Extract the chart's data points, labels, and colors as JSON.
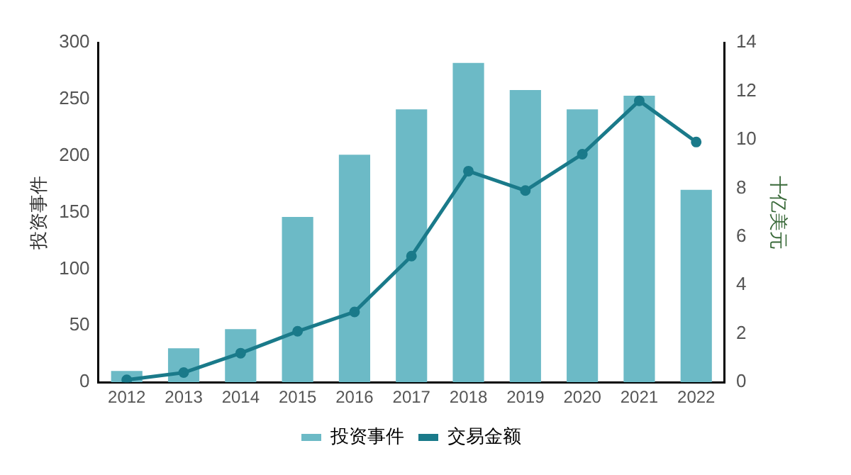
{
  "chart_data": {
    "type": "bar",
    "categories": [
      "2012",
      "2013",
      "2014",
      "2015",
      "2016",
      "2017",
      "2018",
      "2019",
      "2020",
      "2021",
      "2022"
    ],
    "series": [
      {
        "name": "投资事件",
        "color": "#6cbac6",
        "values": [
          10,
          30,
          47,
          146,
          201,
          241,
          282,
          258,
          241,
          253,
          170
        ]
      },
      {
        "name": "交易金额",
        "type": "line",
        "axis": "y2",
        "color": "#1a7a8a",
        "marker": "circle",
        "values": [
          0.1,
          0.4,
          1.2,
          2.1,
          2.9,
          5.2,
          8.7,
          7.9,
          9.4,
          11.6,
          9.9
        ]
      }
    ],
    "ylabel": "投资事件",
    "y2label": "十亿美元",
    "ylim": [
      0,
      300
    ],
    "yticks": [
      0,
      50,
      100,
      150,
      200,
      250,
      300
    ],
    "y2lim": [
      0,
      14
    ],
    "y2ticks": [
      0,
      2,
      4,
      6,
      8,
      10,
      12,
      14
    ],
    "grid": false,
    "legend": "bottom"
  }
}
